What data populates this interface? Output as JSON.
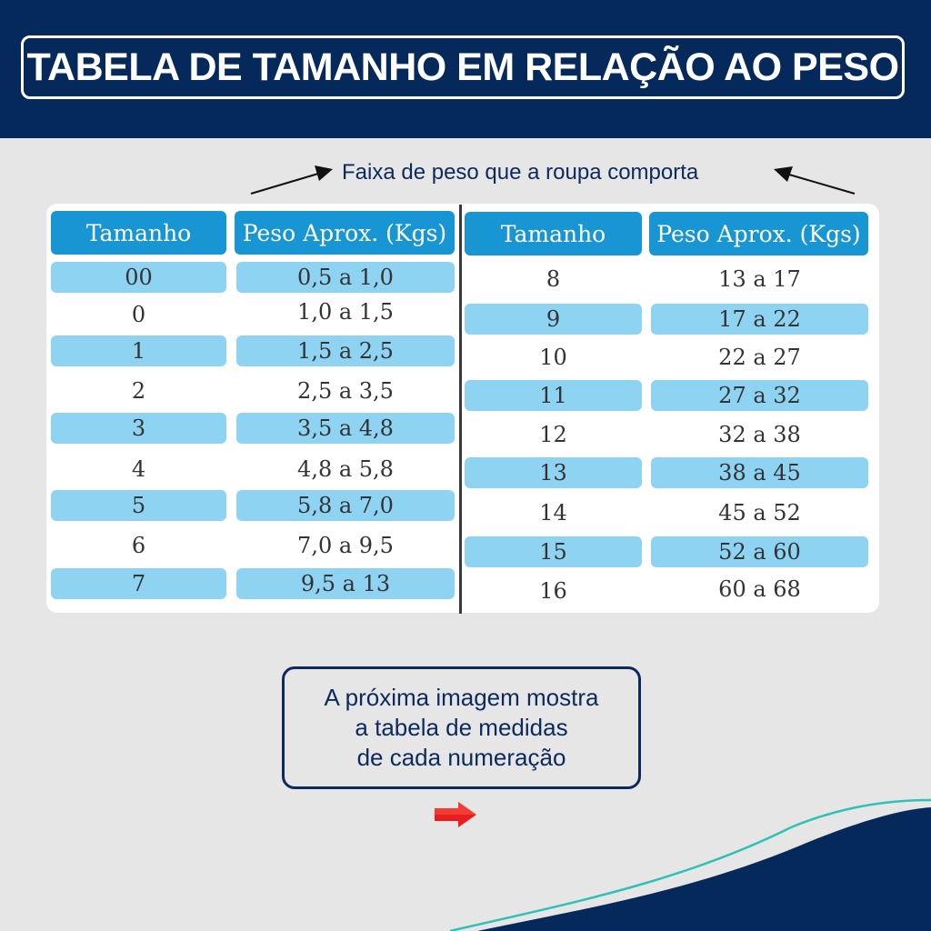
{
  "title": "TABELA DE TAMANHO EM RELAÇÃO AO PESO",
  "range_note": "Faixa de peso que a roupa comporta",
  "colors": {
    "header_bg": "#06295c",
    "column_header_bg": "#1796d3",
    "row_highlight": "#8fd3f3",
    "page_bg": "#e6e6e6",
    "accent_arrow": "#e81e1e",
    "wave_line": "#2fc1b6"
  },
  "left_table": {
    "headers": [
      "Tamanho",
      "Peso Aprox. (Kgs)"
    ],
    "rows": [
      {
        "size": "00",
        "weight": "0,5 a 1,0"
      },
      {
        "size": "0",
        "weight": "1,0 a 1,5"
      },
      {
        "size": "1",
        "weight": "1,5 a 2,5"
      },
      {
        "size": "2",
        "weight": "2,5 a 3,5"
      },
      {
        "size": "3",
        "weight": "3,5 a 4,8"
      },
      {
        "size": "4",
        "weight": "4,8 a 5,8"
      },
      {
        "size": "5",
        "weight": "5,8 a 7,0"
      },
      {
        "size": "6",
        "weight": "7,0 a 9,5"
      },
      {
        "size": "7",
        "weight": "9,5 a 13"
      }
    ]
  },
  "right_table": {
    "headers": [
      "Tamanho",
      "Peso Aprox. (Kgs)"
    ],
    "rows": [
      {
        "size": "8",
        "weight": "13 a 17"
      },
      {
        "size": "9",
        "weight": "17 a 22"
      },
      {
        "size": "10",
        "weight": "22 a 27"
      },
      {
        "size": "11",
        "weight": "27 a 32"
      },
      {
        "size": "12",
        "weight": "32 a 38"
      },
      {
        "size": "13",
        "weight": "38 a 45"
      },
      {
        "size": "14",
        "weight": "45 a 52"
      },
      {
        "size": "15",
        "weight": "52 a 60"
      },
      {
        "size": "16",
        "weight": "60 a 68"
      }
    ]
  },
  "info_box": {
    "lines": [
      "A próxima imagem mostra",
      "a tabela de medidas",
      "de cada numeração"
    ]
  },
  "icons": {
    "next_arrow": "red-right-arrow-icon",
    "pointer_arrows": "black-arrow-icon"
  }
}
